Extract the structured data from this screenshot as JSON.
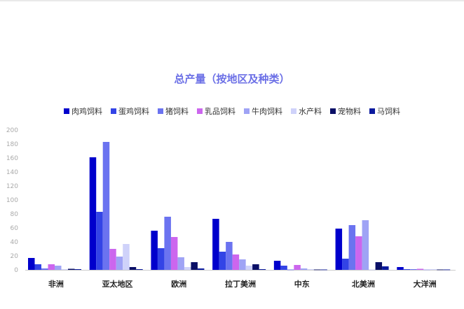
{
  "chart_data": {
    "type": "bar",
    "title": "总产量（按地区及种类）",
    "categories": [
      "非洲",
      "亚太地区",
      "欧洲",
      "拉丁美洲",
      "中东",
      "北美洲",
      "大洋洲"
    ],
    "ylim": [
      0,
      200
    ],
    "yticks": [
      0,
      20,
      40,
      60,
      80,
      100,
      120,
      140,
      160,
      180,
      200
    ],
    "grid": false,
    "legend_position": "top",
    "series": [
      {
        "name": "肉鸡饲料",
        "color": "#0000cc",
        "values": [
          17,
          161,
          56,
          73,
          13,
          59,
          4
        ]
      },
      {
        "name": "蛋鸡饲料",
        "color": "#3344e6",
        "values": [
          8,
          83,
          31,
          26,
          6,
          16,
          1
        ]
      },
      {
        "name": "猪饲料",
        "color": "#6b73f0",
        "values": [
          2,
          183,
          76,
          40,
          0.5,
          64,
          1
        ]
      },
      {
        "name": "乳品饲料",
        "color": "#cc66ee",
        "values": [
          8,
          30,
          47,
          22,
          7,
          48,
          1.5
        ]
      },
      {
        "name": "牛肉饲料",
        "color": "#9fa3f5",
        "values": [
          6,
          19,
          18,
          15,
          2,
          71,
          0.5
        ]
      },
      {
        "name": "水产料",
        "color": "#cfd2fa",
        "values": [
          1,
          37,
          4,
          6,
          1,
          0.5,
          1
        ]
      },
      {
        "name": "宠物料",
        "color": "#0a0f66",
        "values": [
          1.5,
          4,
          11,
          8,
          0.5,
          11,
          0.5
        ]
      },
      {
        "name": "马饲料",
        "color": "#0b1a9e",
        "values": [
          1,
          1,
          2,
          1,
          0.5,
          5,
          0.5
        ]
      }
    ]
  }
}
